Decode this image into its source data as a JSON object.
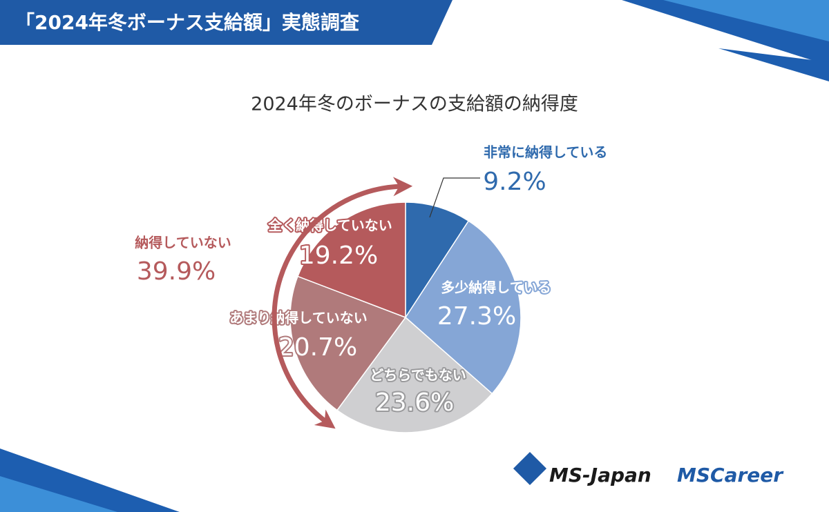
{
  "header": {
    "title": "「2024年冬ボーナス支給額」実態調査"
  },
  "chart_data": {
    "type": "pie",
    "title": "2024年冬のボーナスの支給額の納得度",
    "categories": [
      "非常に納得している",
      "多少納得している",
      "どちらでもない",
      "あまり納得していない",
      "全く納得していない"
    ],
    "values": [
      9.2,
      27.3,
      23.6,
      20.7,
      19.2
    ],
    "value_labels": [
      "9.2%",
      "27.3%",
      "23.6%",
      "20.7%",
      "19.2%"
    ],
    "colors": [
      "#2f6aad",
      "#85a6d6",
      "#cfcfd1",
      "#b07a7b",
      "#b55a5c"
    ],
    "group": {
      "name": "納得していない",
      "value": 39.9,
      "value_label": "39.9%",
      "color": "#b55a5c"
    }
  },
  "logos": [
    "MS-Japan",
    "MSCareer"
  ]
}
